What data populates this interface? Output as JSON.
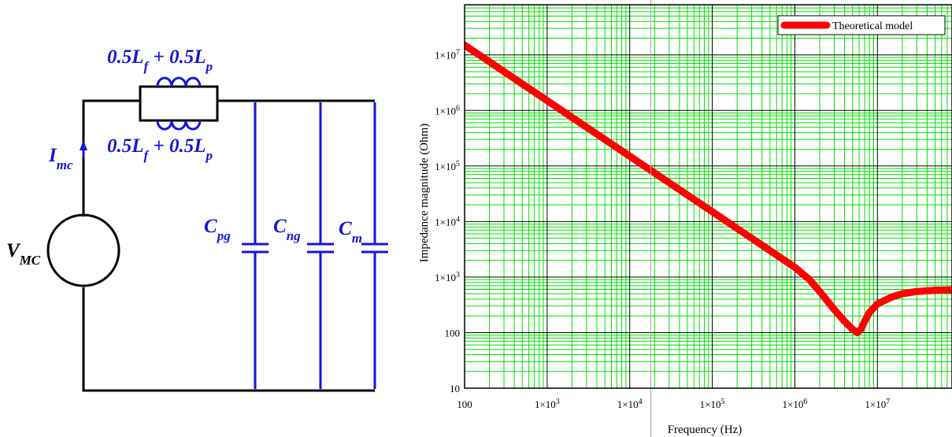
{
  "circuit": {
    "inductor_top_label": {
      "main": "0.5L",
      "sub1": "f",
      "mid": " + 0.5L",
      "sub2": "p"
    },
    "inductor_bottom_label": {
      "main": "0.5L",
      "sub1": "f",
      "mid": " + 0.5L",
      "sub2": "p"
    },
    "current_label": {
      "main": "I",
      "sub": "mc"
    },
    "source_label": {
      "main": "V",
      "sub": "MC"
    },
    "capacitors": [
      {
        "main": "C",
        "sub": "pg"
      },
      {
        "main": "C",
        "sub": "ng"
      },
      {
        "main": "C",
        "sub": "m"
      }
    ],
    "colors": {
      "wire": "#000000",
      "component": "#1515d8"
    }
  },
  "chart_data": {
    "type": "line",
    "xscale": "log",
    "yscale": "log",
    "xlim": [
      100,
      80000000
    ],
    "ylim": [
      10,
      80000000
    ],
    "xlabel": "Frequency (Hz)",
    "ylabel": "Impedance magnitude (Ohm)",
    "x_ticks": [
      {
        "value": 100,
        "base": "100",
        "exp": ""
      },
      {
        "value": 1000,
        "base": "1×10",
        "exp": "3"
      },
      {
        "value": 10000,
        "base": "1×10",
        "exp": "4"
      },
      {
        "value": 100000,
        "base": "1×10",
        "exp": "5"
      },
      {
        "value": 1000000,
        "base": "1×10",
        "exp": "6"
      },
      {
        "value": 10000000,
        "base": "1×10",
        "exp": "7"
      }
    ],
    "y_ticks": [
      {
        "value": 10,
        "base": "10",
        "exp": ""
      },
      {
        "value": 100,
        "base": "100",
        "exp": ""
      },
      {
        "value": 1000,
        "base": "1×10",
        "exp": "3"
      },
      {
        "value": 10000,
        "base": "1×10",
        "exp": "4"
      },
      {
        "value": 100000,
        "base": "1×10",
        "exp": "5"
      },
      {
        "value": 1000000,
        "base": "1×10",
        "exp": "6"
      },
      {
        "value": 10000000,
        "base": "1×10",
        "exp": "7"
      }
    ],
    "grid": true,
    "legend_position": "top-right",
    "series": [
      {
        "name": "Theoretical model",
        "color": "#ff0000",
        "x": [
          100,
          200,
          500,
          1000,
          2000,
          5000,
          10000,
          20000,
          50000,
          100000,
          200000,
          500000,
          1000000,
          1500000,
          2000000,
          3000000,
          4000000,
          5000000,
          5700000,
          6300000,
          7000000,
          8000000,
          10000000,
          15000000,
          20000000,
          30000000,
          50000000,
          80000000
        ],
        "y": [
          15000000,
          7500000,
          3000000,
          1500000,
          750000,
          300000,
          150000,
          75000,
          30000,
          15000,
          7500,
          3000,
          1500,
          900,
          550,
          260,
          160,
          115,
          100,
          115,
          160,
          230,
          330,
          440,
          500,
          550,
          580,
          590
        ]
      }
    ],
    "grid_colors": {
      "minor": "#00e000",
      "major": "#000000",
      "cursor": "#a9a9a9"
    },
    "cursor_x": 18000
  }
}
